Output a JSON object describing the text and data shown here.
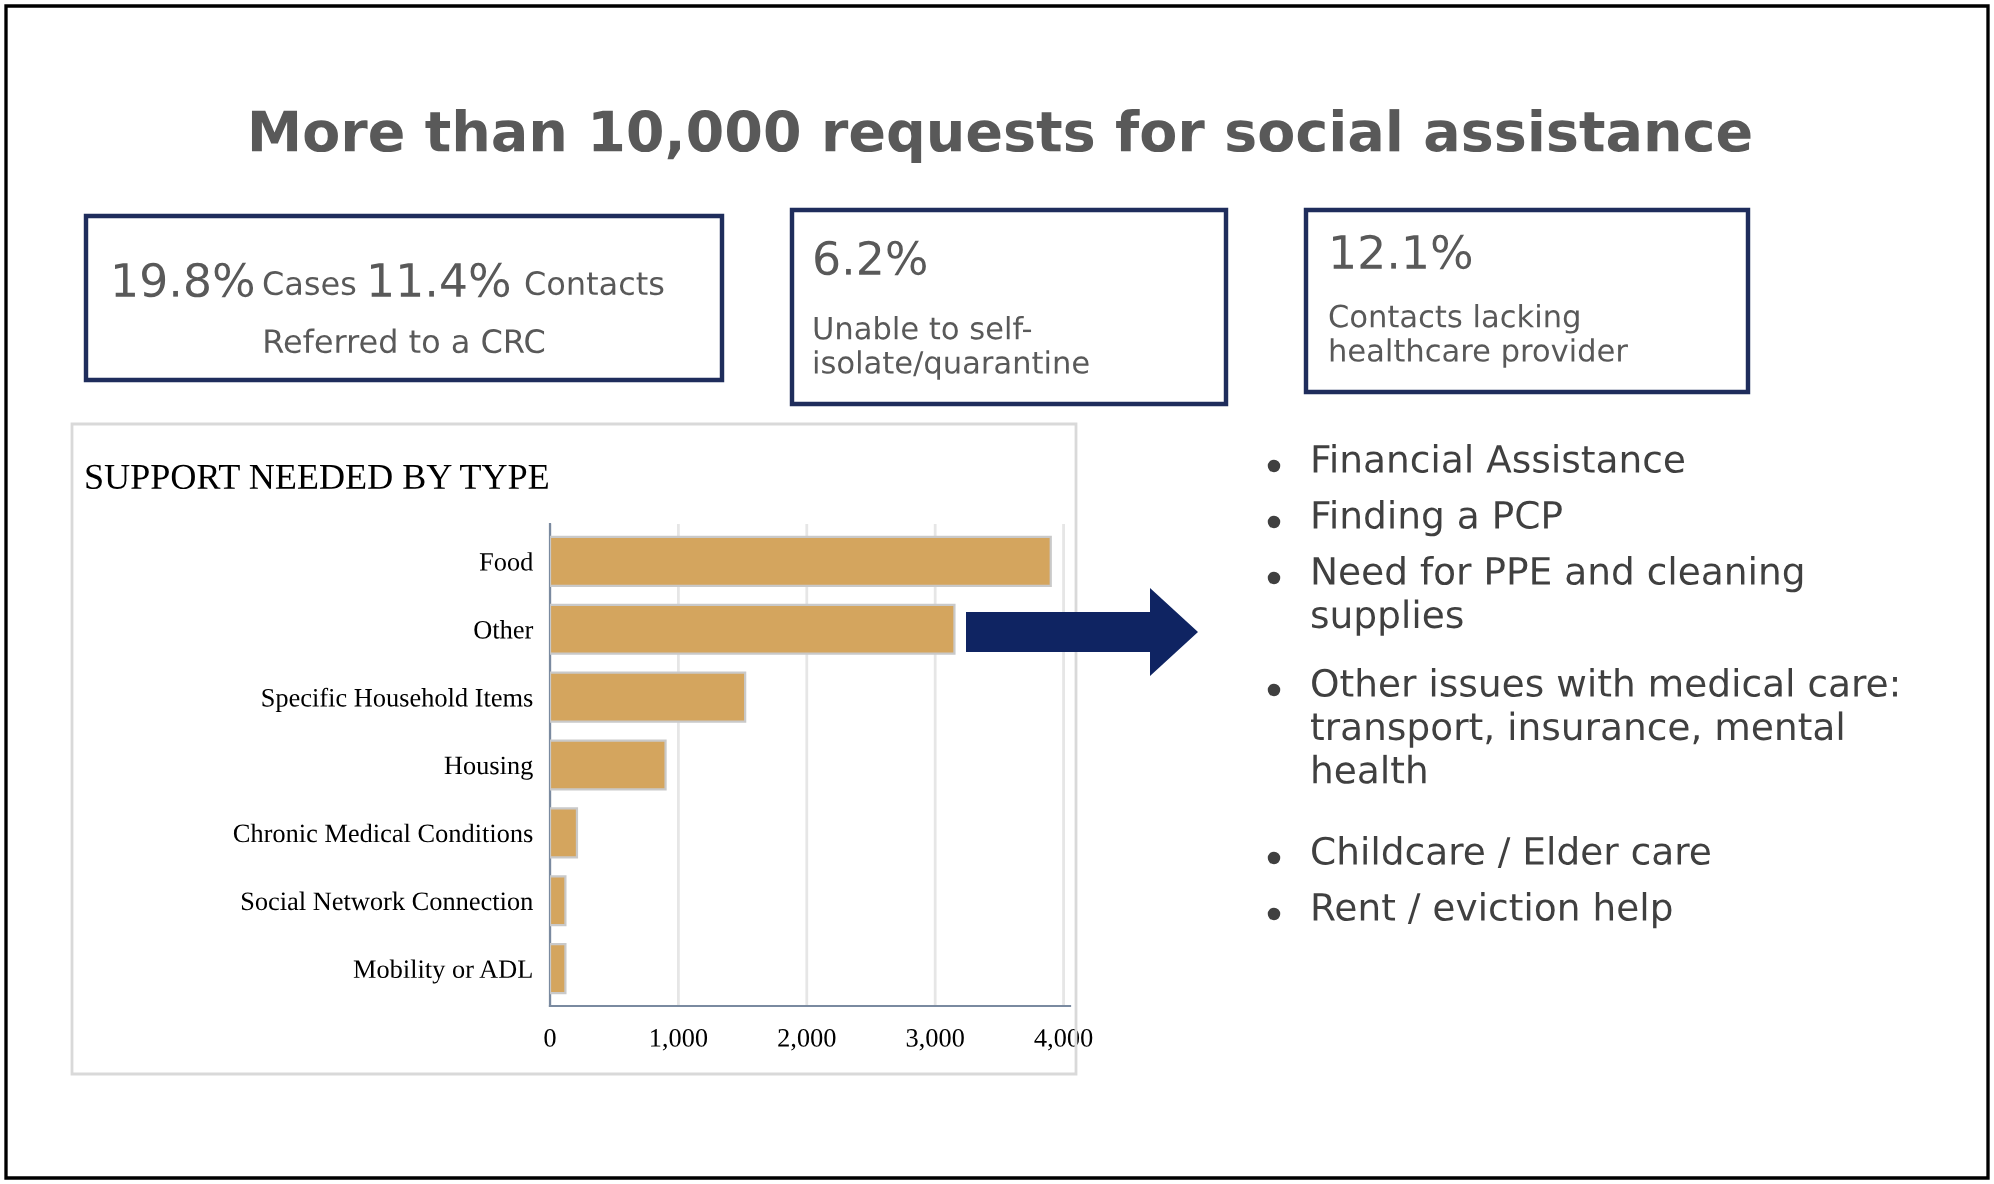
{
  "chart_data": {
    "type": "bar",
    "orientation": "horizontal",
    "title": "More than 10,000 requests for social assistance",
    "subtitle": "SUPPORT NEEDED BY TYPE",
    "categories": [
      "Food",
      "Other",
      "Specific Household Items",
      "Housing",
      "Chronic Medical Conditions",
      "Social Network Connection",
      "Mobility or ADL"
    ],
    "values": [
      3900,
      3150,
      1520,
      900,
      210,
      120,
      120
    ],
    "color": "#d4a55e",
    "xlim": [
      0,
      4050
    ],
    "xticks": [
      0,
      {
        "value": 1000,
        "label": "1,000"
      },
      {
        "value": 2000,
        "label": "2,000"
      },
      {
        "value": 3000,
        "label": "3,000"
      },
      {
        "value": 4000,
        "label": "4,000"
      }
    ],
    "grid": "x",
    "legend": false,
    "annotations": [
      "19.8%",
      "Cases",
      "11.4%",
      "Contacts",
      "Referred to a CRC",
      "6.2%",
      "Unable to self-\nisolate/quarantine",
      "12.1%",
      "Contacts lacking\nhealthcare provider",
      "Financial Assistance",
      "Finding a PCP",
      "Need for PPE and cleaning\nsupplies",
      "Other issues with medical care:\ntransport, insurance, mental\nhealth",
      "Childcare / Elder care",
      "Rent / eviction help"
    ]
  }
}
